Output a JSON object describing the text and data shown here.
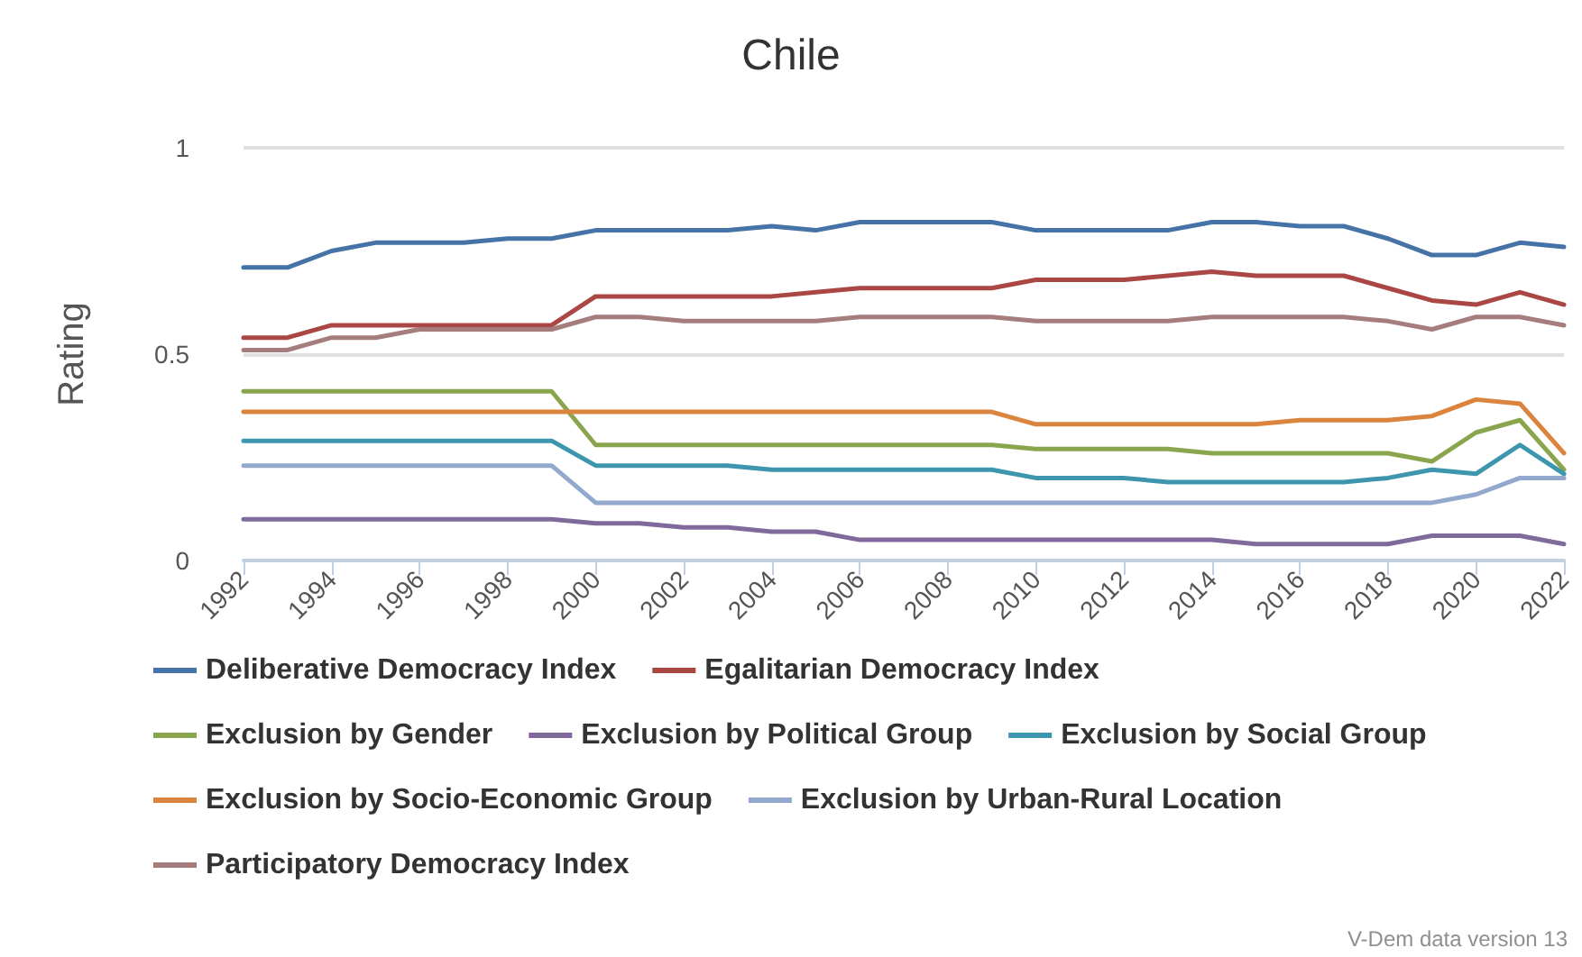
{
  "chart_data": {
    "type": "line",
    "title": "Chile",
    "ylabel": "Rating",
    "x": [
      1992,
      1993,
      1994,
      1995,
      1996,
      1997,
      1998,
      1999,
      2000,
      2001,
      2002,
      2003,
      2004,
      2005,
      2006,
      2007,
      2008,
      2009,
      2010,
      2011,
      2012,
      2013,
      2014,
      2015,
      2016,
      2017,
      2018,
      2019,
      2020,
      2021,
      2022
    ],
    "xlim": [
      1992,
      2022
    ],
    "xticks": [
      1992,
      1994,
      1996,
      1998,
      2000,
      2002,
      2004,
      2006,
      2008,
      2010,
      2012,
      2014,
      2016,
      2018,
      2020,
      2022
    ],
    "ylim": [
      0,
      1
    ],
    "yticks": [
      0,
      0.5,
      1
    ],
    "grid": "y",
    "legend": "bottom",
    "marker": "none",
    "line_style": "solid",
    "annotations": [
      "V-Dem data version 13"
    ],
    "series": [
      {
        "name": "Deliberative Democracy Index",
        "color": "#4572a7",
        "values": [
          0.71,
          0.71,
          0.75,
          0.77,
          0.77,
          0.77,
          0.78,
          0.78,
          0.8,
          0.8,
          0.8,
          0.8,
          0.81,
          0.8,
          0.82,
          0.82,
          0.82,
          0.82,
          0.8,
          0.8,
          0.8,
          0.8,
          0.82,
          0.82,
          0.81,
          0.81,
          0.78,
          0.74,
          0.74,
          0.77,
          0.76
        ]
      },
      {
        "name": "Egalitarian Democracy Index",
        "color": "#aa4643",
        "values": [
          0.54,
          0.54,
          0.57,
          0.57,
          0.57,
          0.57,
          0.57,
          0.57,
          0.64,
          0.64,
          0.64,
          0.64,
          0.64,
          0.65,
          0.66,
          0.66,
          0.66,
          0.66,
          0.68,
          0.68,
          0.68,
          0.69,
          0.7,
          0.69,
          0.69,
          0.69,
          0.66,
          0.63,
          0.62,
          0.65,
          0.62
        ]
      },
      {
        "name": "Exclusion by Gender",
        "color": "#89a54e",
        "values": [
          0.41,
          0.41,
          0.41,
          0.41,
          0.41,
          0.41,
          0.41,
          0.41,
          0.28,
          0.28,
          0.28,
          0.28,
          0.28,
          0.28,
          0.28,
          0.28,
          0.28,
          0.28,
          0.27,
          0.27,
          0.27,
          0.27,
          0.26,
          0.26,
          0.26,
          0.26,
          0.26,
          0.24,
          0.31,
          0.34,
          0.22
        ]
      },
      {
        "name": "Exclusion by Political Group",
        "color": "#80699b",
        "values": [
          0.1,
          0.1,
          0.1,
          0.1,
          0.1,
          0.1,
          0.1,
          0.1,
          0.09,
          0.09,
          0.08,
          0.08,
          0.07,
          0.07,
          0.05,
          0.05,
          0.05,
          0.05,
          0.05,
          0.05,
          0.05,
          0.05,
          0.05,
          0.04,
          0.04,
          0.04,
          0.04,
          0.06,
          0.06,
          0.06,
          0.04
        ]
      },
      {
        "name": "Exclusion by Social Group",
        "color": "#3d96ae",
        "values": [
          0.29,
          0.29,
          0.29,
          0.29,
          0.29,
          0.29,
          0.29,
          0.29,
          0.23,
          0.23,
          0.23,
          0.23,
          0.22,
          0.22,
          0.22,
          0.22,
          0.22,
          0.22,
          0.2,
          0.2,
          0.2,
          0.19,
          0.19,
          0.19,
          0.19,
          0.19,
          0.2,
          0.22,
          0.21,
          0.28,
          0.21
        ]
      },
      {
        "name": "Exclusion by Socio-Economic Group",
        "color": "#db843d",
        "values": [
          0.36,
          0.36,
          0.36,
          0.36,
          0.36,
          0.36,
          0.36,
          0.36,
          0.36,
          0.36,
          0.36,
          0.36,
          0.36,
          0.36,
          0.36,
          0.36,
          0.36,
          0.36,
          0.33,
          0.33,
          0.33,
          0.33,
          0.33,
          0.33,
          0.34,
          0.34,
          0.34,
          0.35,
          0.39,
          0.38,
          0.26
        ]
      },
      {
        "name": "Exclusion by Urban-Rural Location",
        "color": "#92a8cd",
        "values": [
          0.23,
          0.23,
          0.23,
          0.23,
          0.23,
          0.23,
          0.23,
          0.23,
          0.14,
          0.14,
          0.14,
          0.14,
          0.14,
          0.14,
          0.14,
          0.14,
          0.14,
          0.14,
          0.14,
          0.14,
          0.14,
          0.14,
          0.14,
          0.14,
          0.14,
          0.14,
          0.14,
          0.14,
          0.16,
          0.2,
          0.2
        ]
      },
      {
        "name": "Participatory Democracy Index",
        "color": "#a47d7c",
        "values": [
          0.51,
          0.51,
          0.54,
          0.54,
          0.56,
          0.56,
          0.56,
          0.56,
          0.59,
          0.59,
          0.58,
          0.58,
          0.58,
          0.58,
          0.59,
          0.59,
          0.59,
          0.59,
          0.58,
          0.58,
          0.58,
          0.58,
          0.59,
          0.59,
          0.59,
          0.59,
          0.58,
          0.56,
          0.59,
          0.59,
          0.57
        ]
      }
    ]
  }
}
